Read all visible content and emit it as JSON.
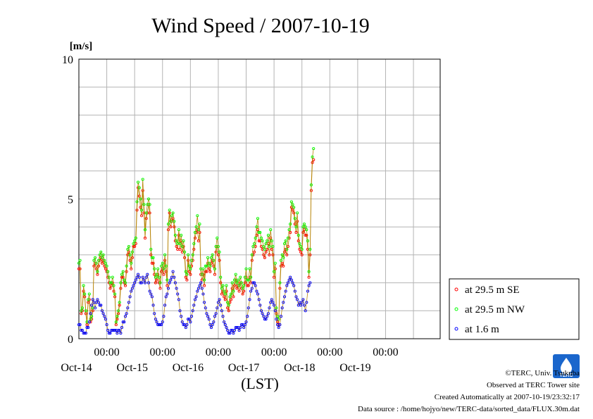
{
  "chart_data": {
    "type": "line",
    "title": "Wind Speed / 2007-10-19",
    "ylabel": "[m/s]",
    "xlabel": "(LST)",
    "ylim": [
      0,
      10
    ],
    "yticks": [
      "0",
      "5",
      "10"
    ],
    "xlim": [
      "2007-10-13T12:00",
      "2007-10-19T23:30"
    ],
    "xticks": [
      {
        "x": "2007-10-14T00:00",
        "time": "00:00",
        "date": "Oct-14"
      },
      {
        "x": "2007-10-15T00:00",
        "time": "00:00",
        "date": "Oct-15"
      },
      {
        "x": "2007-10-16T00:00",
        "time": "00:00",
        "date": "Oct-16"
      },
      {
        "x": "2007-10-17T00:00",
        "time": "00:00",
        "date": "Oct-17"
      },
      {
        "x": "2007-10-18T00:00",
        "time": "00:00",
        "date": "Oct-18"
      },
      {
        "x": "2007-10-19T00:00",
        "time": "00:00",
        "date": "Oct-19"
      }
    ],
    "grid": true,
    "legend_position": "right",
    "x_interval_minutes": 30,
    "x_start": "2007-10-13T12:00",
    "series": [
      {
        "name": "at 29.5 m SE",
        "color": "#ff0000",
        "values": [
          2.5,
          2.5,
          0.9,
          1.0,
          1.7,
          1.5,
          0.9,
          0.5,
          1.3,
          1.4,
          0.6,
          0.7,
          1.0,
          2.6,
          2.7,
          2.5,
          2.3,
          2.6,
          2.8,
          2.9,
          2.7,
          2.8,
          2.6,
          2.5,
          2.4,
          2.2,
          2.0,
          1.8,
          1.9,
          2.0,
          1.7,
          1.5,
          0.5,
          0.7,
          0.9,
          1.2,
          1.8,
          2.2,
          2.2,
          2.0,
          1.9,
          2.4,
          3.0,
          3.1,
          2.8,
          2.5,
          2.9,
          3.3,
          3.3,
          3.4,
          4.6,
          5.4,
          5.1,
          4.7,
          4.4,
          5.3,
          4.5,
          3.6,
          4.3,
          4.5,
          4.8,
          4.5,
          3.0,
          2.7,
          2.7,
          2.3,
          2.0,
          2.1,
          2.3,
          2.0,
          1.8,
          2.4,
          2.5,
          2.3,
          2.8,
          2.4,
          1.9,
          3.9,
          4.5,
          4.0,
          4.2,
          4.3,
          4.0,
          3.5,
          3.3,
          3.2,
          3.7,
          3.2,
          3.5,
          3.1,
          3.3,
          2.9,
          2.2,
          2.1,
          2.8,
          2.4,
          2.3,
          2.6,
          2.8,
          3.2,
          3.6,
          3.8,
          3.9,
          3.5,
          3.8,
          2.3,
          2.1,
          2.3,
          1.9,
          2.4,
          2.4,
          2.7,
          2.5,
          2.4,
          2.7,
          2.8,
          2.6,
          2.3,
          3.1,
          3.3,
          3.0,
          2.8,
          2.0,
          1.6,
          1.7,
          1.5,
          1.4,
          1.7,
          1.1,
          1.0,
          1.3,
          1.4,
          1.8,
          1.5,
          1.9,
          2.1,
          1.8,
          1.9,
          1.7,
          2.0,
          1.8,
          1.6,
          1.7,
          2.0,
          2.2,
          1.9,
          1.9,
          2.2,
          2.0,
          2.8,
          3.0,
          3.1,
          3.3,
          3.7,
          3.9,
          3.5,
          3.5,
          3.3,
          3.2,
          3.0,
          2.9,
          3.1,
          3.2,
          3.4,
          3.0,
          3.6,
          3.2,
          3.0,
          2.2,
          2.5,
          0.9,
          0.6,
          0.5,
          1.8,
          2.6,
          2.7,
          2.6,
          3.1,
          3.2,
          3.0,
          3.3,
          3.6,
          3.8,
          4.7,
          4.6,
          4.5,
          4.1,
          3.8,
          4.2,
          3.5,
          3.2,
          3.1,
          3.0,
          3.8,
          3.9,
          3.7,
          3.7,
          3.2,
          2.2,
          3.0,
          5.3,
          6.3,
          6.4
        ]
      },
      {
        "name": "at 29.5 m NW",
        "color": "#00ff00",
        "values": [
          2.7,
          2.8,
          1.0,
          1.1,
          1.9,
          1.6,
          1.0,
          0.6,
          1.4,
          1.6,
          0.7,
          0.8,
          1.1,
          2.8,
          2.9,
          2.7,
          2.4,
          2.8,
          3.0,
          3.1,
          2.9,
          3.0,
          2.8,
          2.7,
          2.6,
          2.4,
          2.2,
          2.0,
          2.0,
          2.2,
          1.9,
          1.6,
          0.6,
          0.8,
          1.0,
          1.3,
          2.0,
          2.3,
          2.4,
          2.1,
          2.0,
          2.6,
          3.2,
          3.3,
          3.0,
          2.7,
          3.1,
          3.4,
          3.5,
          3.6,
          4.9,
          5.6,
          5.4,
          5.0,
          4.6,
          5.7,
          4.8,
          3.9,
          4.5,
          4.8,
          5.0,
          4.8,
          3.2,
          2.9,
          2.9,
          2.5,
          2.2,
          2.3,
          2.5,
          2.2,
          2.0,
          2.6,
          2.7,
          2.5,
          3.0,
          2.6,
          2.1,
          4.1,
          4.6,
          4.2,
          4.4,
          4.5,
          4.2,
          3.7,
          3.5,
          3.4,
          3.9,
          3.4,
          3.7,
          3.3,
          3.5,
          3.1,
          2.4,
          2.3,
          3.0,
          2.6,
          2.5,
          2.8,
          3.0,
          3.4,
          3.8,
          4.0,
          4.4,
          3.9,
          4.1,
          2.5,
          2.3,
          2.5,
          2.1,
          2.6,
          2.6,
          2.9,
          2.7,
          2.6,
          2.9,
          3.0,
          2.8,
          2.5,
          3.3,
          3.6,
          3.3,
          3.1,
          2.2,
          1.8,
          1.9,
          1.7,
          1.6,
          1.9,
          1.3,
          1.2,
          1.5,
          1.6,
          2.0,
          1.7,
          2.1,
          2.3,
          2.0,
          2.1,
          1.9,
          2.2,
          2.0,
          1.8,
          1.9,
          2.2,
          2.5,
          2.1,
          2.1,
          2.5,
          2.2,
          3.0,
          3.3,
          3.4,
          3.6,
          4.0,
          4.3,
          3.8,
          3.8,
          3.6,
          3.5,
          3.3,
          3.2,
          3.4,
          3.5,
          3.7,
          3.3,
          3.9,
          3.5,
          3.3,
          2.4,
          2.7,
          1.1,
          0.8,
          0.7,
          2.0,
          2.8,
          3.0,
          2.9,
          3.4,
          3.5,
          3.2,
          3.6,
          3.9,
          4.1,
          4.9,
          4.8,
          4.7,
          4.3,
          4.0,
          4.5,
          3.7,
          3.4,
          3.3,
          3.2,
          4.0,
          4.1,
          4.0,
          3.9,
          3.5,
          2.4,
          3.2,
          5.5,
          6.5,
          6.8
        ]
      },
      {
        "name": "at 1.6 m",
        "color": "#0000ff",
        "values": [
          0.5,
          0.5,
          0.3,
          0.3,
          0.2,
          0.2,
          0.2,
          0.4,
          0.4,
          0.6,
          0.9,
          1.2,
          1.4,
          1.3,
          1.1,
          1.3,
          1.4,
          1.3,
          1.2,
          1.2,
          1.0,
          0.9,
          0.8,
          0.7,
          0.5,
          0.3,
          0.2,
          0.2,
          0.3,
          0.3,
          0.3,
          0.3,
          0.3,
          0.2,
          0.3,
          0.3,
          0.2,
          0.4,
          0.6,
          0.6,
          0.8,
          0.9,
          1.1,
          1.3,
          1.5,
          1.7,
          1.8,
          1.9,
          2.0,
          2.1,
          2.2,
          2.3,
          2.2,
          2.0,
          2.0,
          2.2,
          2.1,
          2.0,
          2.2,
          2.3,
          2.0,
          1.7,
          1.6,
          1.5,
          1.2,
          0.9,
          0.7,
          0.6,
          0.5,
          0.5,
          0.5,
          0.5,
          0.6,
          0.8,
          1.2,
          1.5,
          1.6,
          1.8,
          2.0,
          2.1,
          2.2,
          2.4,
          2.2,
          2.0,
          1.8,
          1.6,
          1.4,
          1.0,
          0.8,
          0.6,
          0.5,
          0.5,
          0.4,
          0.5,
          0.7,
          0.7,
          0.6,
          0.8,
          1.0,
          1.2,
          1.4,
          1.5,
          1.7,
          1.8,
          1.9,
          2.0,
          1.8,
          1.6,
          1.3,
          1.1,
          0.9,
          0.8,
          0.7,
          0.5,
          0.4,
          0.5,
          0.6,
          0.8,
          0.9,
          1.1,
          1.3,
          1.4,
          1.2,
          1.0,
          0.8,
          0.6,
          0.5,
          0.4,
          0.3,
          0.2,
          0.2,
          0.3,
          0.3,
          0.2,
          0.3,
          0.4,
          0.4,
          0.4,
          0.3,
          0.4,
          0.5,
          0.5,
          0.4,
          0.5,
          0.6,
          0.8,
          1.1,
          1.4,
          1.7,
          1.8,
          2.0,
          2.0,
          1.9,
          1.7,
          1.6,
          1.4,
          1.2,
          1.0,
          0.9,
          0.8,
          0.7,
          0.7,
          0.8,
          0.9,
          1.1,
          1.3,
          1.4,
          1.3,
          1.2,
          1.0,
          0.7,
          0.5,
          0.4,
          0.5,
          0.8,
          1.1,
          1.3,
          1.5,
          1.7,
          1.9,
          2.0,
          2.1,
          2.2,
          2.1,
          2.0,
          1.9,
          1.7,
          1.5,
          1.4,
          1.2,
          1.3,
          1.2,
          1.3,
          1.4,
          1.2,
          1.0,
          1.3,
          1.7,
          1.9,
          2.0
        ]
      }
    ]
  },
  "footer": {
    "copyright": "©TERC, Univ. Tsukuba",
    "observed": "Observed at TERC Tower site",
    "created": "Created Automatically at 2007-10-19/23:32:17",
    "source": "Data source : /home/hojyo/new/TERC-data/sorted_data/FLUX.30m.dat"
  },
  "logo": {
    "text": "TERC",
    "color": "#1a66cc"
  }
}
